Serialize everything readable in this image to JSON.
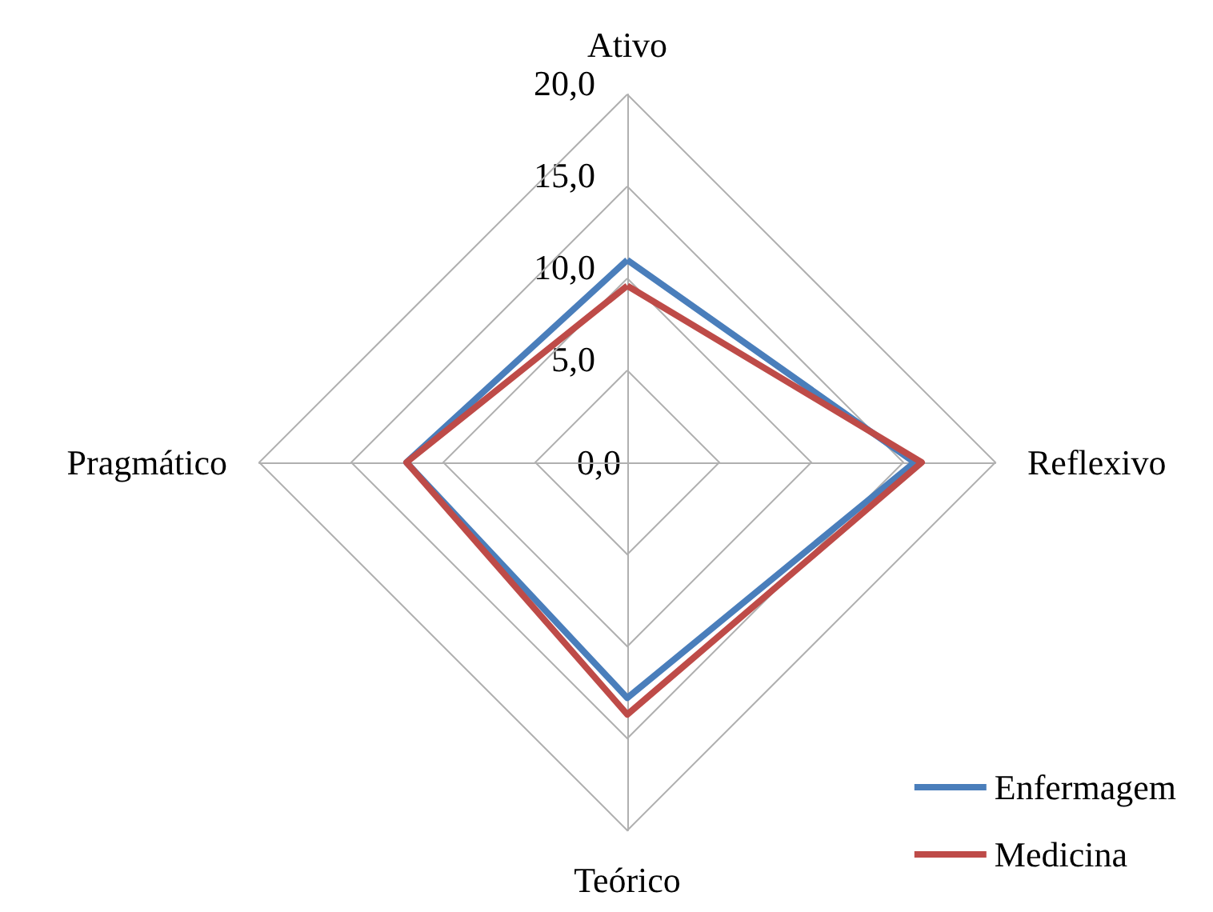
{
  "chart_data": {
    "type": "radar",
    "categories": [
      "Ativo",
      "Reflexivo",
      "Teórico",
      "Pragmático"
    ],
    "series": [
      {
        "name": "Enfermagem",
        "color": "#4a7ebb",
        "values": [
          11.0,
          15.6,
          12.8,
          12.0
        ]
      },
      {
        "name": "Medicina",
        "color": "#be4b48",
        "values": [
          9.6,
          16.0,
          13.7,
          12.0
        ]
      }
    ],
    "ylim": [
      0,
      20
    ],
    "yticks": [
      {
        "value": 0,
        "label": "0,0"
      },
      {
        "value": 5,
        "label": "5,0"
      },
      {
        "value": 10,
        "label": "10,0"
      },
      {
        "value": 15,
        "label": "15,0"
      },
      {
        "value": 20,
        "label": "20,0"
      }
    ],
    "grid": true,
    "legend": "bottom right",
    "marker": "none",
    "line_style": "solid"
  }
}
